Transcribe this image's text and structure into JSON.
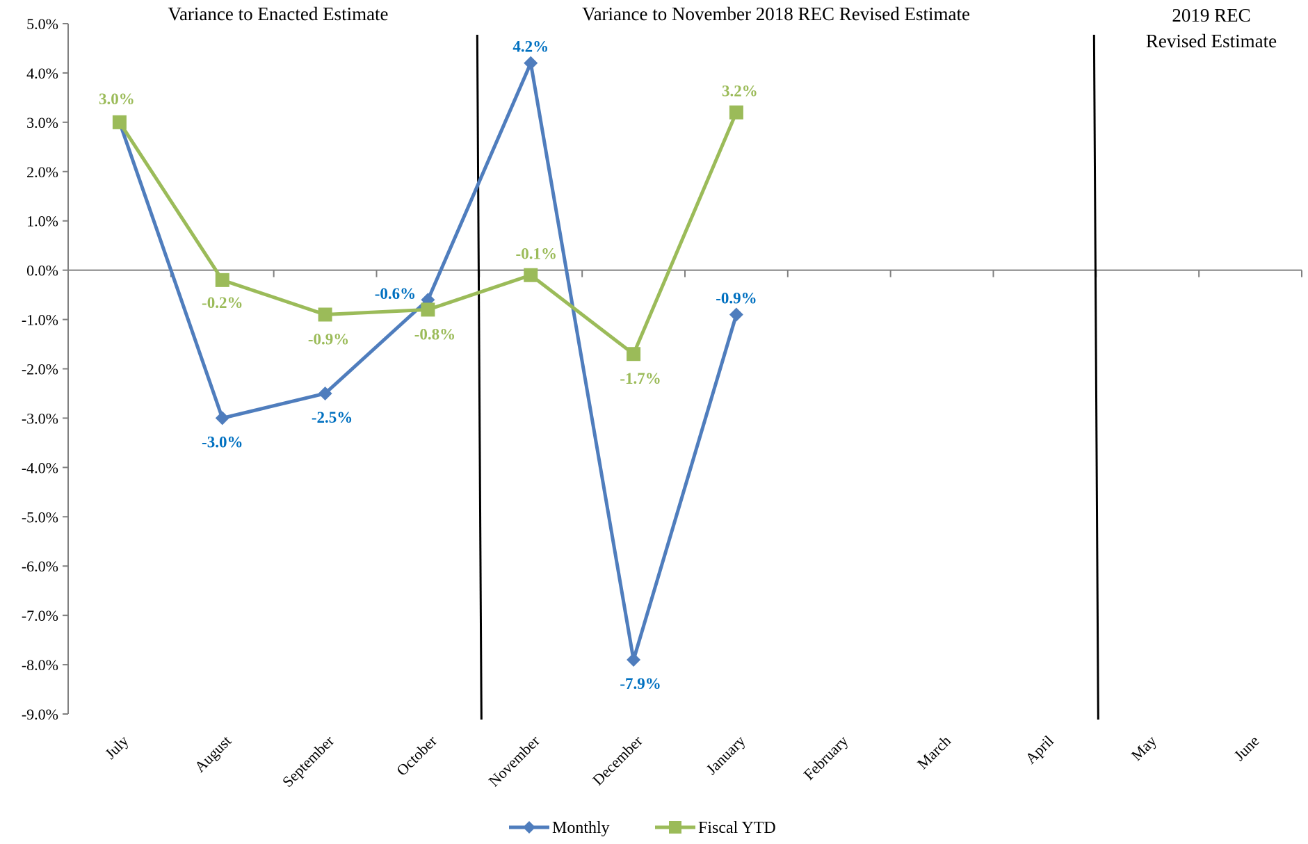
{
  "chart_data": {
    "type": "line",
    "categories": [
      "July",
      "August",
      "September",
      "October",
      "November",
      "December",
      "January",
      "February",
      "March",
      "April",
      "May",
      "June"
    ],
    "series": [
      {
        "name": "Monthly",
        "color": "#4F7DBD",
        "label_color": "#0070C0",
        "marker": "diamond",
        "values": [
          3.0,
          -3.0,
          -2.5,
          -0.6,
          4.2,
          -7.9,
          -0.9,
          null,
          null,
          null,
          null,
          null
        ],
        "labels": [
          "",
          "-3.0%",
          "-2.5%",
          "-0.6%",
          "4.2%",
          "-7.9%",
          "-0.9%",
          "",
          "",
          "",
          "",
          ""
        ]
      },
      {
        "name": "Fiscal YTD",
        "color": "#9BBB59",
        "label_color": "#9BBB59",
        "marker": "square",
        "values": [
          3.0,
          -0.2,
          -0.9,
          -0.8,
          -0.1,
          -1.7,
          3.2,
          null,
          null,
          null,
          null,
          null
        ],
        "labels": [
          "3.0%",
          "-0.2%",
          "-0.9%",
          "-0.8%",
          "-0.1%",
          "-1.7%",
          "3.2%",
          "",
          "",
          "",
          "",
          ""
        ]
      }
    ],
    "ylim": [
      -9.0,
      5.0
    ],
    "ytick_step": 1.0,
    "ytick_labels": [
      "5.0%",
      "4.0%",
      "3.0%",
      "2.0%",
      "1.0%",
      "0.0%",
      "-1.0%",
      "-2.0%",
      "-3.0%",
      "-4.0%",
      "-5.0%",
      "-6.0%",
      "-7.0%",
      "-8.0%",
      "-9.0%"
    ],
    "xlabel": "",
    "ylabel": "",
    "legend_position": "bottom",
    "sections": [
      {
        "title": "Variance to Enacted Estimate"
      },
      {
        "title": "Variance to November 2018 REC Revised Estimate"
      },
      {
        "title_lines": [
          "2019 REC",
          "Revised Estimate"
        ]
      }
    ],
    "dividers_after_category": [
      3.5,
      9.5
    ],
    "grid": false
  }
}
